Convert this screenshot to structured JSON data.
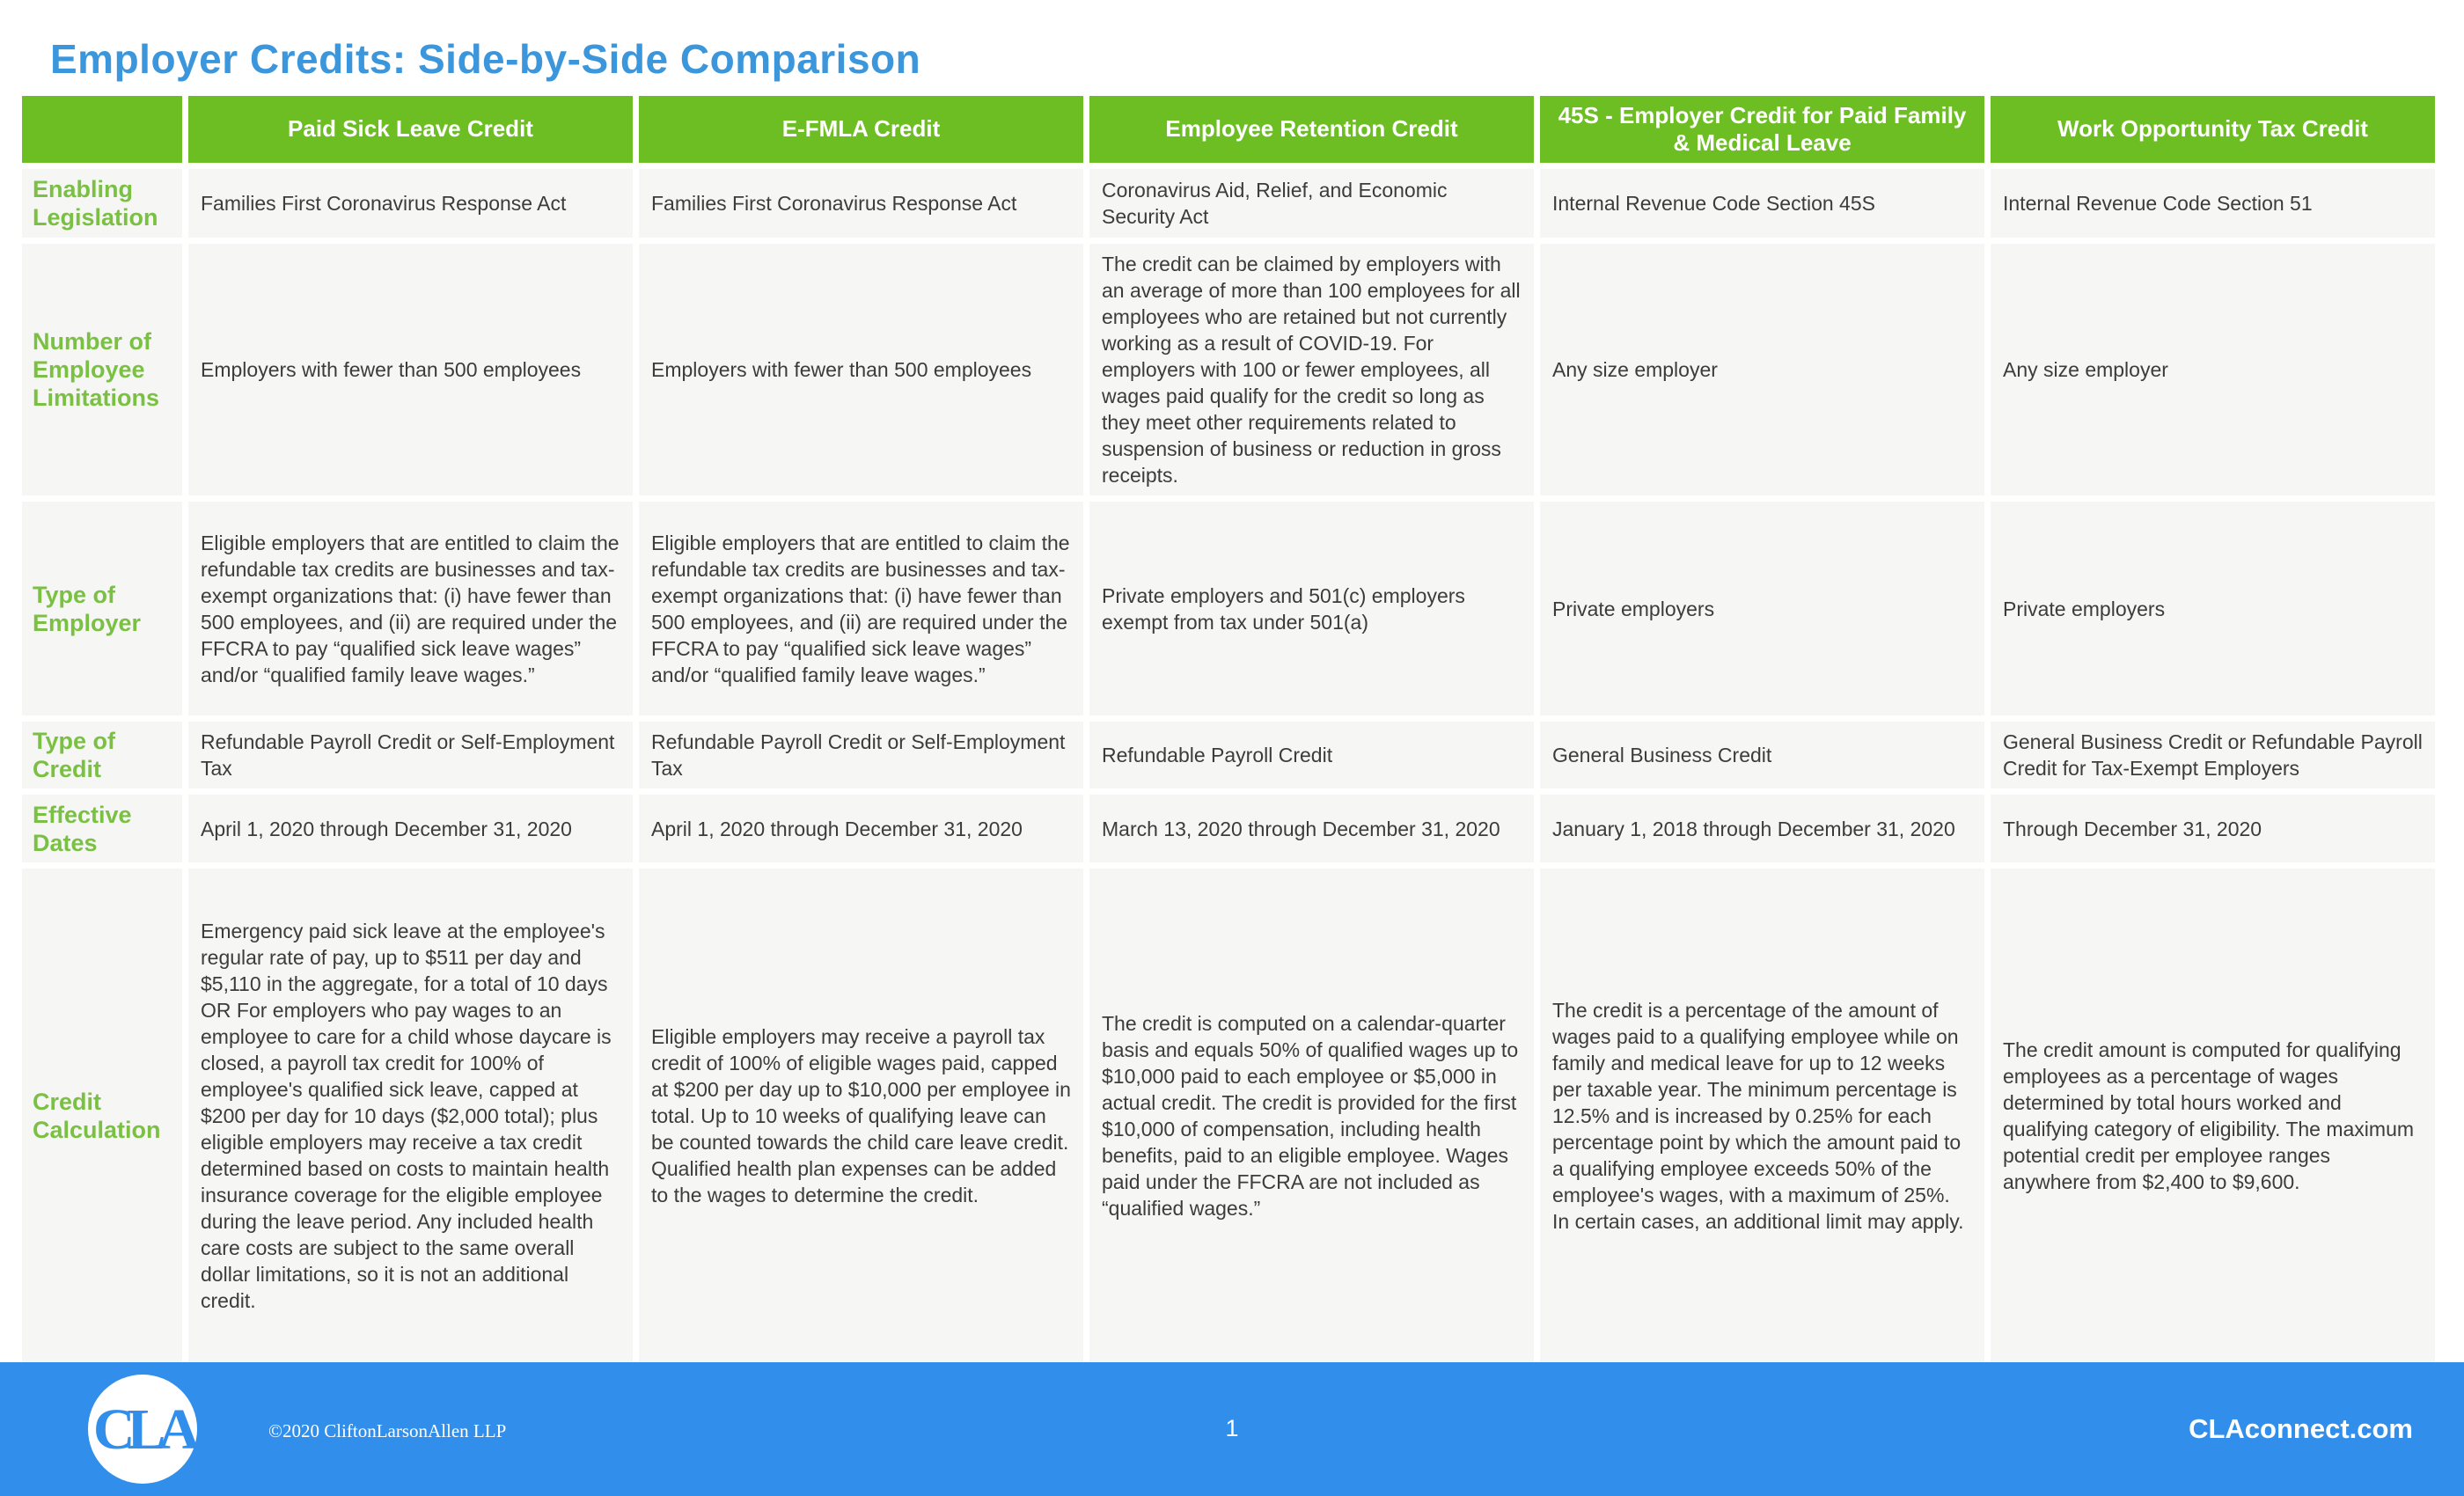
{
  "page": {
    "title": "Employer Credits: Side-by-Side Comparison"
  },
  "colors": {
    "title_blue": "#3B96DB",
    "header_green": "#6CBE23",
    "label_green": "#7AC143",
    "footer_blue": "#318FEB",
    "cell_bg": "#F6F6F4",
    "text_color": "#3C3C3B"
  },
  "table": {
    "columns": [
      "Paid Sick Leave Credit",
      "E-FMLA Credit",
      "Employee Retention Credit",
      "45S - Employer Credit for Paid Family & Medical Leave",
      "Work Opportunity Tax Credit"
    ],
    "rows": [
      {
        "label": "Enabling Legislation",
        "cells": [
          "Families First Coronavirus Response Act",
          "Families First Coronavirus Response Act",
          "Coronavirus Aid, Relief, and Economic Security Act",
          "Internal Revenue Code Section 45S",
          "Internal Revenue Code Section 51"
        ]
      },
      {
        "label": "Number of Employee Limitations",
        "cells": [
          "Employers with fewer than 500 employees",
          "Employers with fewer than 500 employees",
          "The credit can be claimed by employers with an average of more than 100 employees for all employees who are retained but not currently working as a result of COVID-19. For employers with 100 or fewer employees, all wages paid qualify for the credit so long as they meet other requirements related to suspension of business or reduction in gross receipts.",
          "Any size employer",
          "Any size employer"
        ]
      },
      {
        "label": "Type of Employer",
        "cells": [
          "Eligible employers that are entitled to claim the refundable tax credits are businesses and tax-exempt organizations that: (i) have fewer than 500 employees, and (ii) are required under the FFCRA to pay “qualified sick leave wages” and/or “qualified family leave wages.”",
          "Eligible employers that are entitled to claim the refundable tax credits are businesses and tax-exempt organizations that: (i) have fewer than 500 employees, and (ii) are required under the FFCRA to pay “qualified sick leave wages” and/or “qualified family leave wages.”",
          "Private employers and 501(c) employers exempt from tax under 501(a)",
          "Private employers",
          "Private employers"
        ]
      },
      {
        "label": "Type of Credit",
        "cells": [
          "Refundable Payroll Credit or Self-Employment Tax",
          "Refundable Payroll Credit or Self-Employment Tax",
          "Refundable Payroll Credit",
          "General Business Credit",
          "General Business Credit or Refundable Payroll Credit for Tax-Exempt Employers"
        ]
      },
      {
        "label": "Effective Dates",
        "cells": [
          "April 1, 2020 through December 31, 2020",
          "April 1, 2020 through December 31, 2020",
          "March 13, 2020 through December 31, 2020",
          "January 1, 2018 through December 31, 2020",
          "Through December 31, 2020"
        ]
      },
      {
        "label": "Credit Calculation",
        "cells": [
          "Emergency paid sick leave at the employee's regular rate of pay, up to $511 per day and $5,110 in the aggregate, for a total of 10 days OR For employers who pay wages to an employee to care for a child whose daycare is closed, a payroll tax credit for 100% of employee's qualified sick leave, capped at $200 per day for 10 days ($2,000 total); plus eligible employers may receive a tax credit determined based on costs to maintain health insurance coverage for the eligible employee during the leave period. Any included health care costs are subject to the same overall dollar limitations, so it is not an additional credit.",
          "Eligible employers may receive a payroll tax credit of 100% of eligible wages paid, capped at $200 per day up to $10,000 per employee in total. Up to 10 weeks of qualifying leave can be counted towards the child care leave credit. Qualified health plan expenses can be added to the wages to determine the credit.",
          "The credit is computed on a calendar-quarter basis and equals 50% of qualified wages up to $10,000 paid to each employee or $5,000 in actual credit. The credit is provided for the first $10,000 of compensation, including health benefits, paid to an eligible employee. Wages paid under the FFCRA are not included as “qualified wages.”",
          "The credit is a percentage of the amount of wages paid to a qualifying employee while on family and medical leave for up to 12 weeks per taxable year. The minimum percentage is 12.5% and is increased by 0.25% for each percentage point by which the amount paid to a qualifying employee exceeds 50% of the employee's wages, with a maximum of 25%. In certain cases, an additional limit may apply.",
          "The credit amount is computed for qualifying employees as a percentage of wages determined by total hours worked and qualifying category of eligibility. The maximum potential credit per employee ranges anywhere from $2,400 to $9,600."
        ]
      }
    ]
  },
  "footer": {
    "logo_text": "CLA",
    "copyright": "©2020 CliftonLarsonAllen LLP",
    "page_number": "1",
    "website": "CLAconnect.com"
  }
}
